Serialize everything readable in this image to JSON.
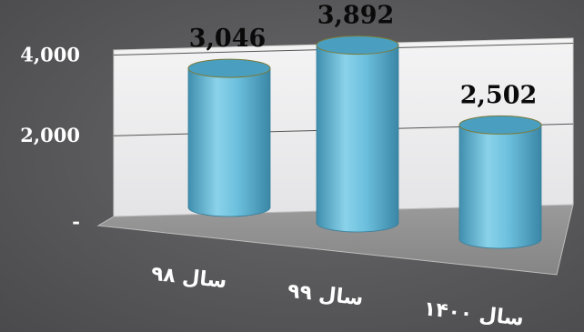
{
  "chart_data": {
    "type": "bar",
    "style": "3d-cylinder",
    "categories": [
      "سال ۹۸",
      "سال ۹۹",
      "سال ۱۴۰۰"
    ],
    "values": [
      3046,
      3892,
      2502
    ],
    "data_labels": [
      "3,046",
      "3,892",
      "2,502"
    ],
    "y_ticks": [
      {
        "value": 0,
        "label": "-"
      },
      {
        "value": 2000,
        "label": "2,000"
      },
      {
        "value": 4000,
        "label": "4,000"
      }
    ],
    "ylim": [
      0,
      4000
    ],
    "grid": true,
    "legend": "none",
    "colors": {
      "bar": "#5fb8d6",
      "bar_top": "#4a9fc0",
      "back_wall": "#efeff0",
      "floor": "#8e8e8e",
      "background": "#5a5a5c"
    }
  }
}
